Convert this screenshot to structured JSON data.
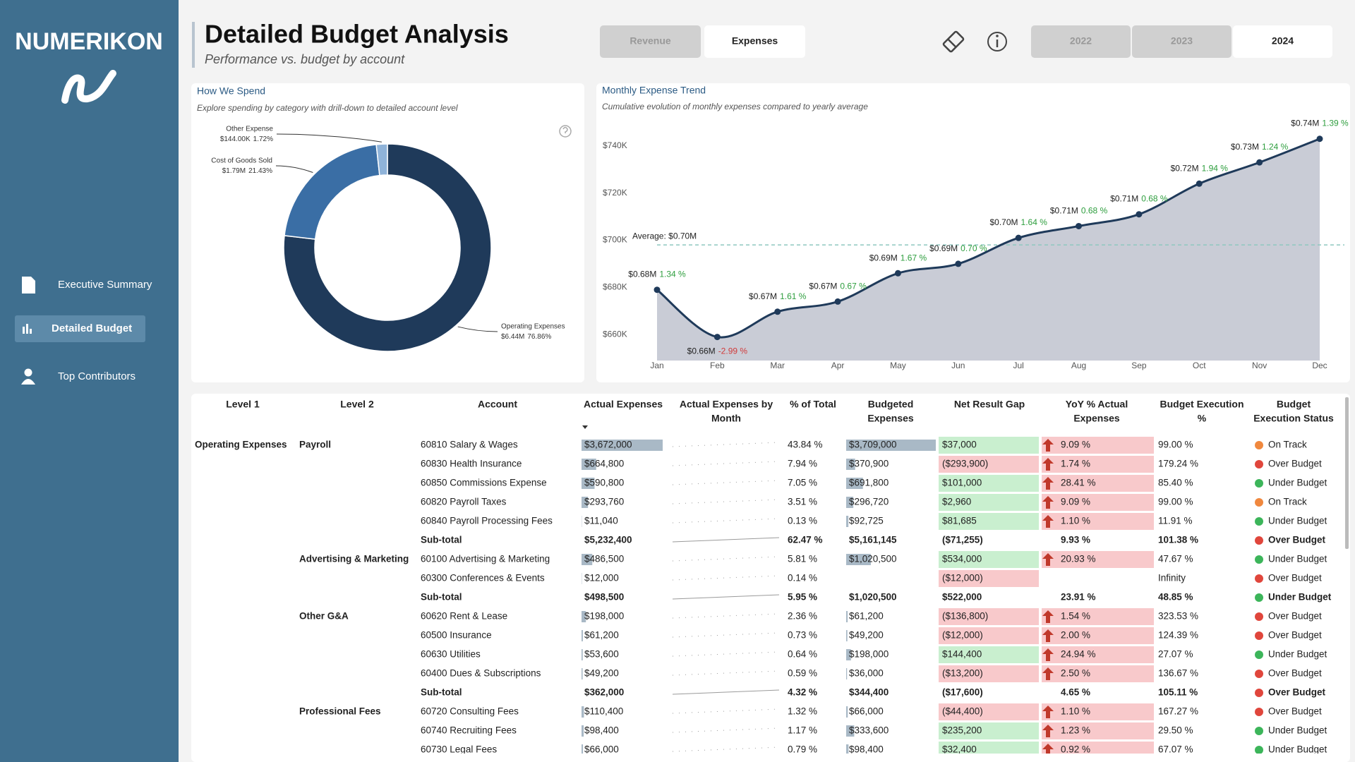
{
  "sidebar": {
    "brand": "NUMERIKON",
    "nav": [
      "Executive Summary",
      "Detailed Budget",
      "Top Contributors"
    ],
    "active": 1
  },
  "header": {
    "title": "Detailed Budget Analysis",
    "subtitle": "Performance vs. budget by account",
    "views": [
      "Revenue",
      "Expenses"
    ],
    "active_view": 1,
    "years": [
      "2022",
      "2023",
      "2024"
    ],
    "active_year": 2
  },
  "chart_data": [
    {
      "type": "donut",
      "title": "How We Spend",
      "subtitle": "Explore spending by category with drill-down to detailed account level",
      "categories": [
        "Operating Expenses",
        "Cost of Goods Sold",
        "Other Expense"
      ],
      "values": [
        76.86,
        21.43,
        1.72
      ],
      "value_labels": [
        "76.86%",
        "21.43%",
        "1.72%"
      ],
      "amount_labels": [
        "$6.44M",
        "$1.79M",
        "$144.00K"
      ],
      "colors": [
        "#1f3a5a",
        "#3a6ea5",
        "#8fb3d9"
      ]
    },
    {
      "type": "area",
      "title": "Monthly Expense Trend",
      "subtitle": "Cumulative evolution of monthly expenses compared to yearly average",
      "categories": [
        "Jan",
        "Feb",
        "Mar",
        "Apr",
        "May",
        "Jun",
        "Jul",
        "Aug",
        "Sep",
        "Oct",
        "Nov",
        "Dec"
      ],
      "values": [
        679000,
        659000,
        669700,
        674000,
        686000,
        690000,
        701000,
        706000,
        711000,
        724000,
        733000,
        743000
      ],
      "value_labels": [
        "$0.68M",
        "$0.66M",
        "$0.67M",
        "$0.67M",
        "$0.69M",
        "$0.69M",
        "$0.70M",
        "$0.71M",
        "$0.71M",
        "$0.72M",
        "$0.73M",
        "$0.74M"
      ],
      "changes": [
        1.34,
        -2.99,
        1.61,
        0.67,
        1.67,
        0.7,
        1.64,
        0.68,
        0.68,
        1.94,
        1.24,
        1.39
      ],
      "change_labels": [
        "1.34 %",
        "-2.99 %",
        "1.61 %",
        "0.67 %",
        "1.67 %",
        "0.70 %",
        "1.64 %",
        "0.68 %",
        "0.68 %",
        "1.94 %",
        "1.24 %",
        "1.39 %"
      ],
      "average": 698000,
      "average_label": "Average: $0.70M",
      "ylim": [
        649000,
        751000
      ],
      "yticks": [
        {
          "value": 660000,
          "label": "$660K"
        },
        {
          "value": 680000,
          "label": "$680K"
        },
        {
          "value": 700000,
          "label": "$700K"
        },
        {
          "value": 720000,
          "label": "$720K"
        },
        {
          "value": 740000,
          "label": "$740K"
        }
      ],
      "color": "#1f3a5a",
      "fill": "#c9ccd6",
      "average_color": "#8fc7c0",
      "positive_color": "#2e9e3e",
      "negative_color": "#d13b3b"
    }
  ],
  "table": {
    "columns": [
      [
        "Level 1"
      ],
      [
        "Level 2"
      ],
      [
        "Account"
      ],
      [
        "Actual Expenses"
      ],
      [
        "Actual Expenses by",
        "Month"
      ],
      [
        "% of Total"
      ],
      [
        "Budgeted",
        "Expenses"
      ],
      [
        "Net Result Gap"
      ],
      [
        "YoY % Actual",
        "Expenses"
      ],
      [
        "Budget Execution",
        "%"
      ],
      [
        "Budget",
        "Execution Status"
      ]
    ],
    "status_colors": {
      "On Track": "#f0883e",
      "Over Budget": "#e0463c",
      "Under Budget": "#3cb55a"
    },
    "rows": [
      {
        "cells": [
          "Operating Expenses",
          "Payroll",
          "60810 Salary & Wages",
          "$3,672,000",
          "43.84 %",
          "$3,709,000",
          "$37,000",
          "9.09 %",
          "99.00 %",
          "On Track"
        ]
      },
      {
        "cells": [
          null,
          null,
          "60830 Health Insurance",
          "$664,800",
          "7.94 %",
          "$370,900",
          "($293,900)",
          "1.74 %",
          "179.24 %",
          "Over Budget"
        ]
      },
      {
        "cells": [
          null,
          null,
          "60850 Commissions Expense",
          "$590,800",
          "7.05 %",
          "$691,800",
          "$101,000",
          "28.41 %",
          "85.40 %",
          "Under Budget"
        ]
      },
      {
        "cells": [
          null,
          null,
          "60820 Payroll Taxes",
          "$293,760",
          "3.51 %",
          "$296,720",
          "$2,960",
          "9.09 %",
          "99.00 %",
          "On Track"
        ]
      },
      {
        "cells": [
          null,
          null,
          "60840 Payroll Processing Fees",
          "$11,040",
          "0.13 %",
          "$92,725",
          "$81,685",
          "1.10 %",
          "11.91 %",
          "Under Budget"
        ]
      },
      {
        "cells": [
          null,
          null,
          "Sub-total",
          "$5,232,400",
          "62.47 %",
          "$5,161,145",
          "($71,255)",
          "9.93 %",
          "101.38 %",
          "Over Budget"
        ],
        "subtotal": true
      },
      {
        "cells": [
          null,
          "Advertising & Marketing",
          "60100 Advertising & Marketing",
          "$486,500",
          "5.81 %",
          "$1,020,500",
          "$534,000",
          "20.93 %",
          "47.67 %",
          "Under Budget"
        ]
      },
      {
        "cells": [
          null,
          null,
          "60300 Conferences & Events",
          "$12,000",
          "0.14 %",
          null,
          "($12,000)",
          null,
          "Infinity",
          "Over Budget"
        ]
      },
      {
        "cells": [
          null,
          null,
          "Sub-total",
          "$498,500",
          "5.95 %",
          "$1,020,500",
          "$522,000",
          "23.91 %",
          "48.85 %",
          "Under Budget"
        ],
        "subtotal": true
      },
      {
        "cells": [
          null,
          "Other G&A",
          "60620 Rent & Lease",
          "$198,000",
          "2.36 %",
          "$61,200",
          "($136,800)",
          "1.54 %",
          "323.53 %",
          "Over Budget"
        ]
      },
      {
        "cells": [
          null,
          null,
          "60500 Insurance",
          "$61,200",
          "0.73 %",
          "$49,200",
          "($12,000)",
          "2.00 %",
          "124.39 %",
          "Over Budget"
        ]
      },
      {
        "cells": [
          null,
          null,
          "60630 Utilities",
          "$53,600",
          "0.64 %",
          "$198,000",
          "$144,400",
          "24.94 %",
          "27.07 %",
          "Under Budget"
        ]
      },
      {
        "cells": [
          null,
          null,
          "60400 Dues & Subscriptions",
          "$49,200",
          "0.59 %",
          "$36,000",
          "($13,200)",
          "2.50 %",
          "136.67 %",
          "Over Budget"
        ]
      },
      {
        "cells": [
          null,
          null,
          "Sub-total",
          "$362,000",
          "4.32 %",
          "$344,400",
          "($17,600)",
          "4.65 %",
          "105.11 %",
          "Over Budget"
        ],
        "subtotal": true
      },
      {
        "cells": [
          null,
          "Professional Fees",
          "60720 Consulting Fees",
          "$110,400",
          "1.32 %",
          "$66,000",
          "($44,400)",
          "1.10 %",
          "167.27 %",
          "Over Budget"
        ]
      },
      {
        "cells": [
          null,
          null,
          "60740 Recruiting Fees",
          "$98,400",
          "1.17 %",
          "$333,600",
          "$235,200",
          "1.23 %",
          "29.50 %",
          "Under Budget"
        ]
      },
      {
        "cells": [
          null,
          null,
          "60730 Legal Fees",
          "$66,000",
          "0.79 %",
          "$98,400",
          "$32,400",
          "0.92 %",
          "67.07 %",
          "Under Budget"
        ]
      }
    ]
  }
}
